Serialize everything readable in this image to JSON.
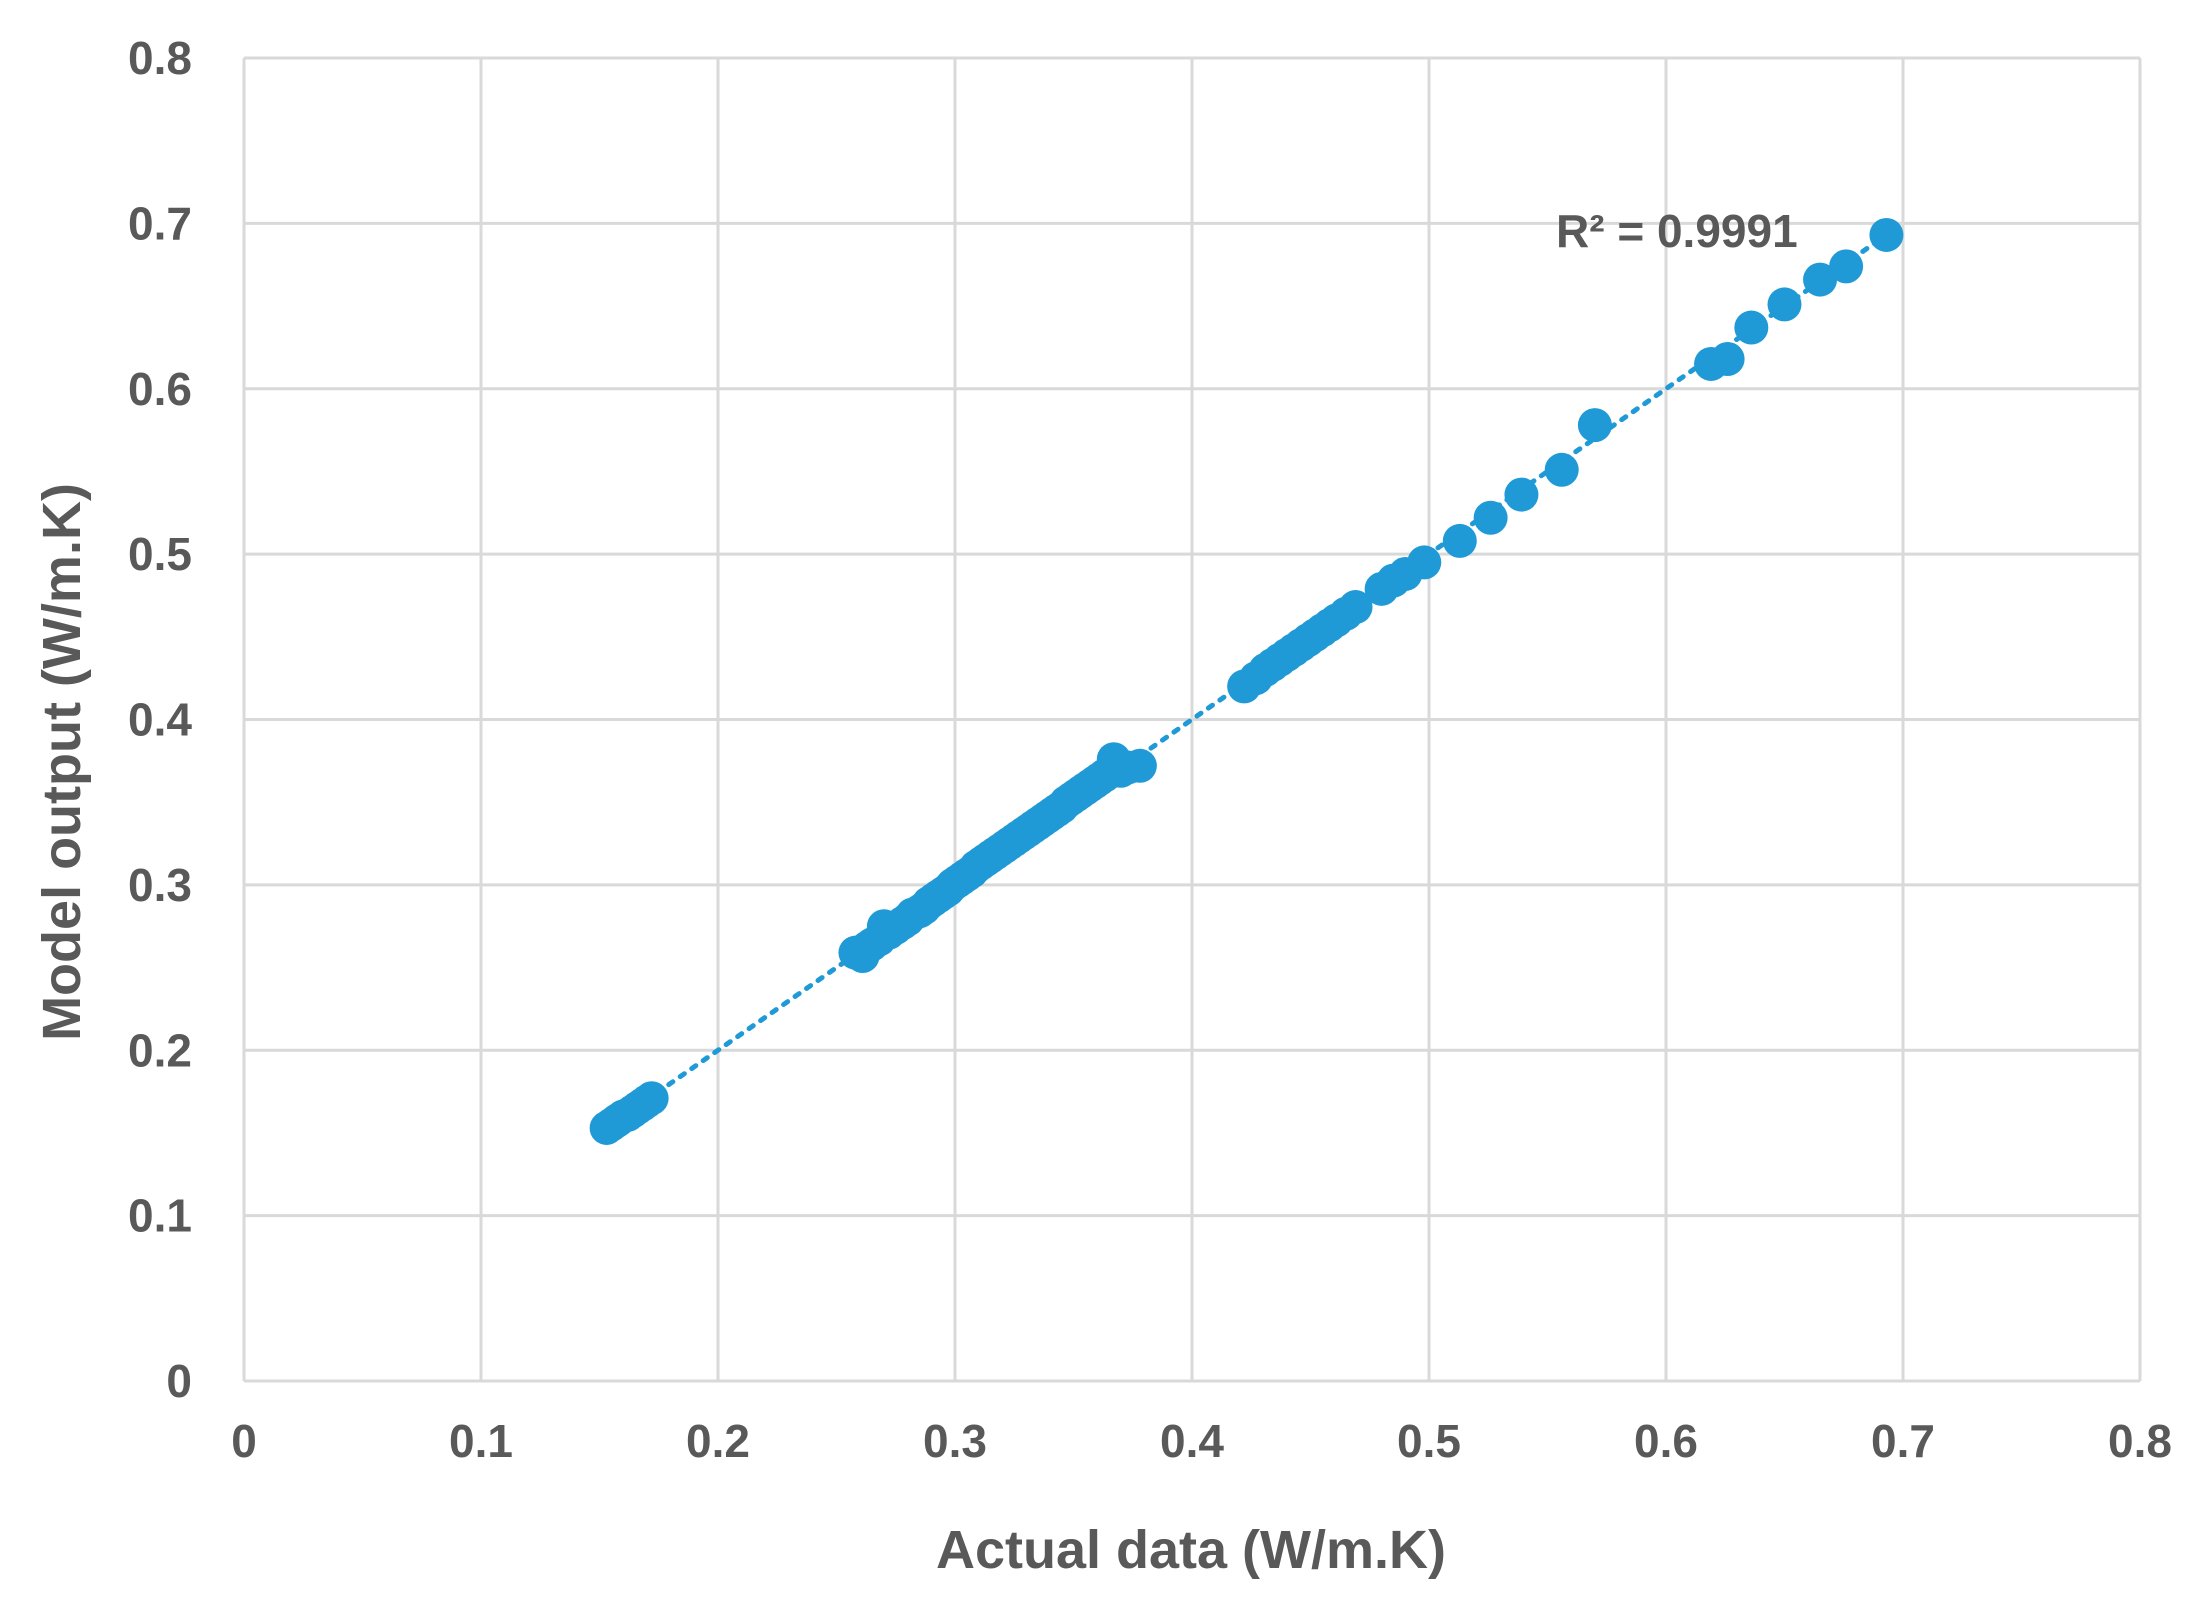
{
  "chart_data": {
    "type": "scatter",
    "title": "",
    "xlabel": "Actual data (W/m.K)",
    "ylabel": "Model output (W/m.K)",
    "xlim": [
      0,
      0.8
    ],
    "ylim": [
      0,
      0.8
    ],
    "xticks": [
      "0",
      "0.1",
      "0.2",
      "0.3",
      "0.4",
      "0.5",
      "0.6",
      "0.7",
      "0.8"
    ],
    "yticks": [
      "0",
      "0.1",
      "0.2",
      "0.3",
      "0.4",
      "0.5",
      "0.6",
      "0.7",
      "0.8"
    ],
    "grid": true,
    "marker_color": "#1f9ad6",
    "trendline": {
      "style": "dotted",
      "color": "#1f9ad6",
      "x": [
        0.155,
        0.695
      ],
      "y": [
        0.155,
        0.695
      ]
    },
    "annotation": "R² = 0.9991",
    "series": [
      {
        "name": "Model output",
        "x": [
          0.153,
          0.155,
          0.157,
          0.158,
          0.16,
          0.162,
          0.164,
          0.166,
          0.168,
          0.17,
          0.172,
          0.258,
          0.261,
          0.263,
          0.265,
          0.268,
          0.27,
          0.272,
          0.275,
          0.278,
          0.28,
          0.282,
          0.285,
          0.287,
          0.289,
          0.291,
          0.293,
          0.295,
          0.297,
          0.299,
          0.301,
          0.303,
          0.305,
          0.307,
          0.309,
          0.311,
          0.313,
          0.315,
          0.317,
          0.319,
          0.321,
          0.323,
          0.325,
          0.327,
          0.329,
          0.331,
          0.333,
          0.335,
          0.337,
          0.339,
          0.341,
          0.343,
          0.345,
          0.347,
          0.349,
          0.351,
          0.353,
          0.355,
          0.357,
          0.359,
          0.361,
          0.363,
          0.365,
          0.367,
          0.37,
          0.373,
          0.378,
          0.422,
          0.427,
          0.431,
          0.434,
          0.437,
          0.44,
          0.443,
          0.446,
          0.449,
          0.452,
          0.455,
          0.458,
          0.461,
          0.465,
          0.469,
          0.48,
          0.485,
          0.49,
          0.498,
          0.513,
          0.526,
          0.539,
          0.556,
          0.57,
          0.619,
          0.626,
          0.636,
          0.65,
          0.665,
          0.676,
          0.693
        ],
        "y": [
          0.153,
          0.155,
          0.157,
          0.158,
          0.16,
          0.161,
          0.163,
          0.165,
          0.167,
          0.169,
          0.171,
          0.259,
          0.257,
          0.262,
          0.264,
          0.267,
          0.275,
          0.271,
          0.274,
          0.277,
          0.279,
          0.282,
          0.284,
          0.286,
          0.289,
          0.291,
          0.293,
          0.295,
          0.297,
          0.3,
          0.302,
          0.304,
          0.306,
          0.308,
          0.311,
          0.313,
          0.315,
          0.317,
          0.319,
          0.321,
          0.323,
          0.325,
          0.327,
          0.329,
          0.331,
          0.333,
          0.335,
          0.337,
          0.339,
          0.341,
          0.343,
          0.345,
          0.347,
          0.35,
          0.352,
          0.354,
          0.356,
          0.358,
          0.36,
          0.362,
          0.364,
          0.366,
          0.368,
          0.376,
          0.369,
          0.371,
          0.372,
          0.42,
          0.425,
          0.43,
          0.433,
          0.436,
          0.439,
          0.442,
          0.445,
          0.448,
          0.451,
          0.454,
          0.457,
          0.46,
          0.464,
          0.468,
          0.479,
          0.484,
          0.488,
          0.495,
          0.508,
          0.522,
          0.536,
          0.551,
          0.578,
          0.615,
          0.618,
          0.637,
          0.651,
          0.666,
          0.674,
          0.693
        ]
      }
    ]
  }
}
